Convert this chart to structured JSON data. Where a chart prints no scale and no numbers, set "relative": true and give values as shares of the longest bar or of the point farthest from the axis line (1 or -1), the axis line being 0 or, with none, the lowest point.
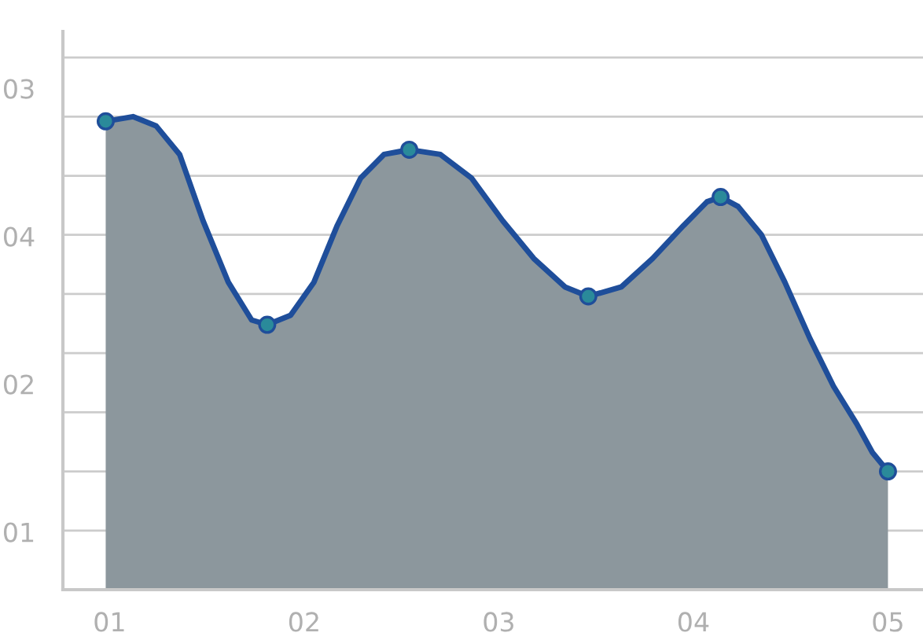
{
  "chart_data": {
    "type": "area",
    "relative": true,
    "annotations": [
      "03",
      "04",
      "02",
      "01"
    ],
    "series": [
      {
        "color": "#1f4e9a",
        "x": [
          0.98,
          1.12,
          1.24,
          1.36,
          1.48,
          1.61,
          1.73,
          1.81,
          1.93,
          2.05,
          2.17,
          2.29,
          2.41,
          2.54,
          2.7,
          2.86,
          3.02,
          3.18,
          3.34,
          3.46,
          3.63,
          3.79,
          3.95,
          4.07,
          4.14,
          4.23,
          4.35,
          4.47,
          4.6,
          4.72,
          4.84,
          4.92,
          5.0
        ],
        "values": [
          0.99,
          1.0,
          0.98,
          0.92,
          0.78,
          0.65,
          0.57,
          0.56,
          0.58,
          0.65,
          0.77,
          0.87,
          0.92,
          0.93,
          0.92,
          0.87,
          0.78,
          0.7,
          0.64,
          0.62,
          0.64,
          0.7,
          0.77,
          0.82,
          0.83,
          0.81,
          0.75,
          0.65,
          0.53,
          0.43,
          0.35,
          0.29,
          0.25
        ]
      },
      {
        "type": "scatter",
        "marker": "circle",
        "color": "#2a8a9a",
        "x": [
          0.98,
          1.81,
          2.54,
          3.46,
          4.14,
          5.0
        ],
        "values": [
          0.99,
          0.56,
          0.93,
          0.62,
          0.83,
          0.25
        ]
      }
    ],
    "xlim": [
      0.76,
      5.18
    ],
    "xticks": [
      {
        "value": 1,
        "label": "01"
      },
      {
        "value": 2,
        "label": "02"
      },
      {
        "value": 3,
        "label": "03"
      },
      {
        "value": 4,
        "label": "04"
      },
      {
        "value": 5,
        "label": "05"
      }
    ],
    "grid": "y",
    "line_style": "solid"
  }
}
